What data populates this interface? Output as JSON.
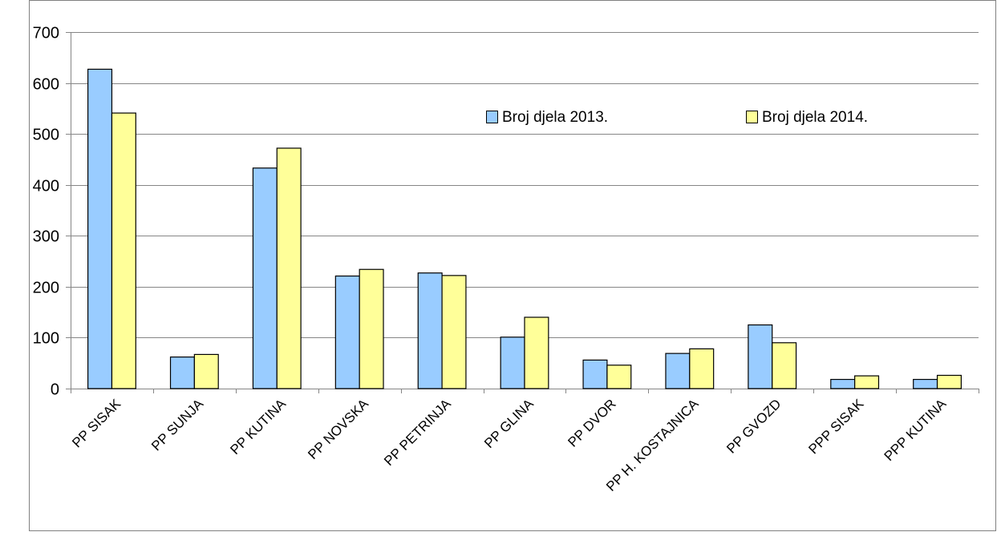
{
  "chart_data": {
    "type": "bar",
    "title": "",
    "xlabel": "",
    "ylabel": "",
    "ylim": [
      0,
      700
    ],
    "yticks": [
      0,
      100,
      200,
      300,
      400,
      500,
      600,
      700
    ],
    "grid": true,
    "legend_position": "top-right",
    "categories": [
      "PP SISAK",
      "PP SUNJA",
      "PP KUTINA",
      "PP NOVSKA",
      "PP PETRINJA",
      "PP GLINA",
      "PP DVOR",
      "PP H. KOSTAJNICA",
      "PP GVOZD",
      "PPP SISAK",
      "PPP KUTINA"
    ],
    "series": [
      {
        "name": "Broj djela 2013.",
        "color": "#99ccff",
        "values": [
          627,
          62,
          433,
          221,
          227,
          101,
          56,
          69,
          125,
          18,
          18
        ]
      },
      {
        "name": "Broj djela 2014.",
        "color": "#ffff99",
        "values": [
          541,
          67,
          472,
          234,
          222,
          140,
          46,
          78,
          90,
          25,
          26
        ]
      }
    ]
  }
}
